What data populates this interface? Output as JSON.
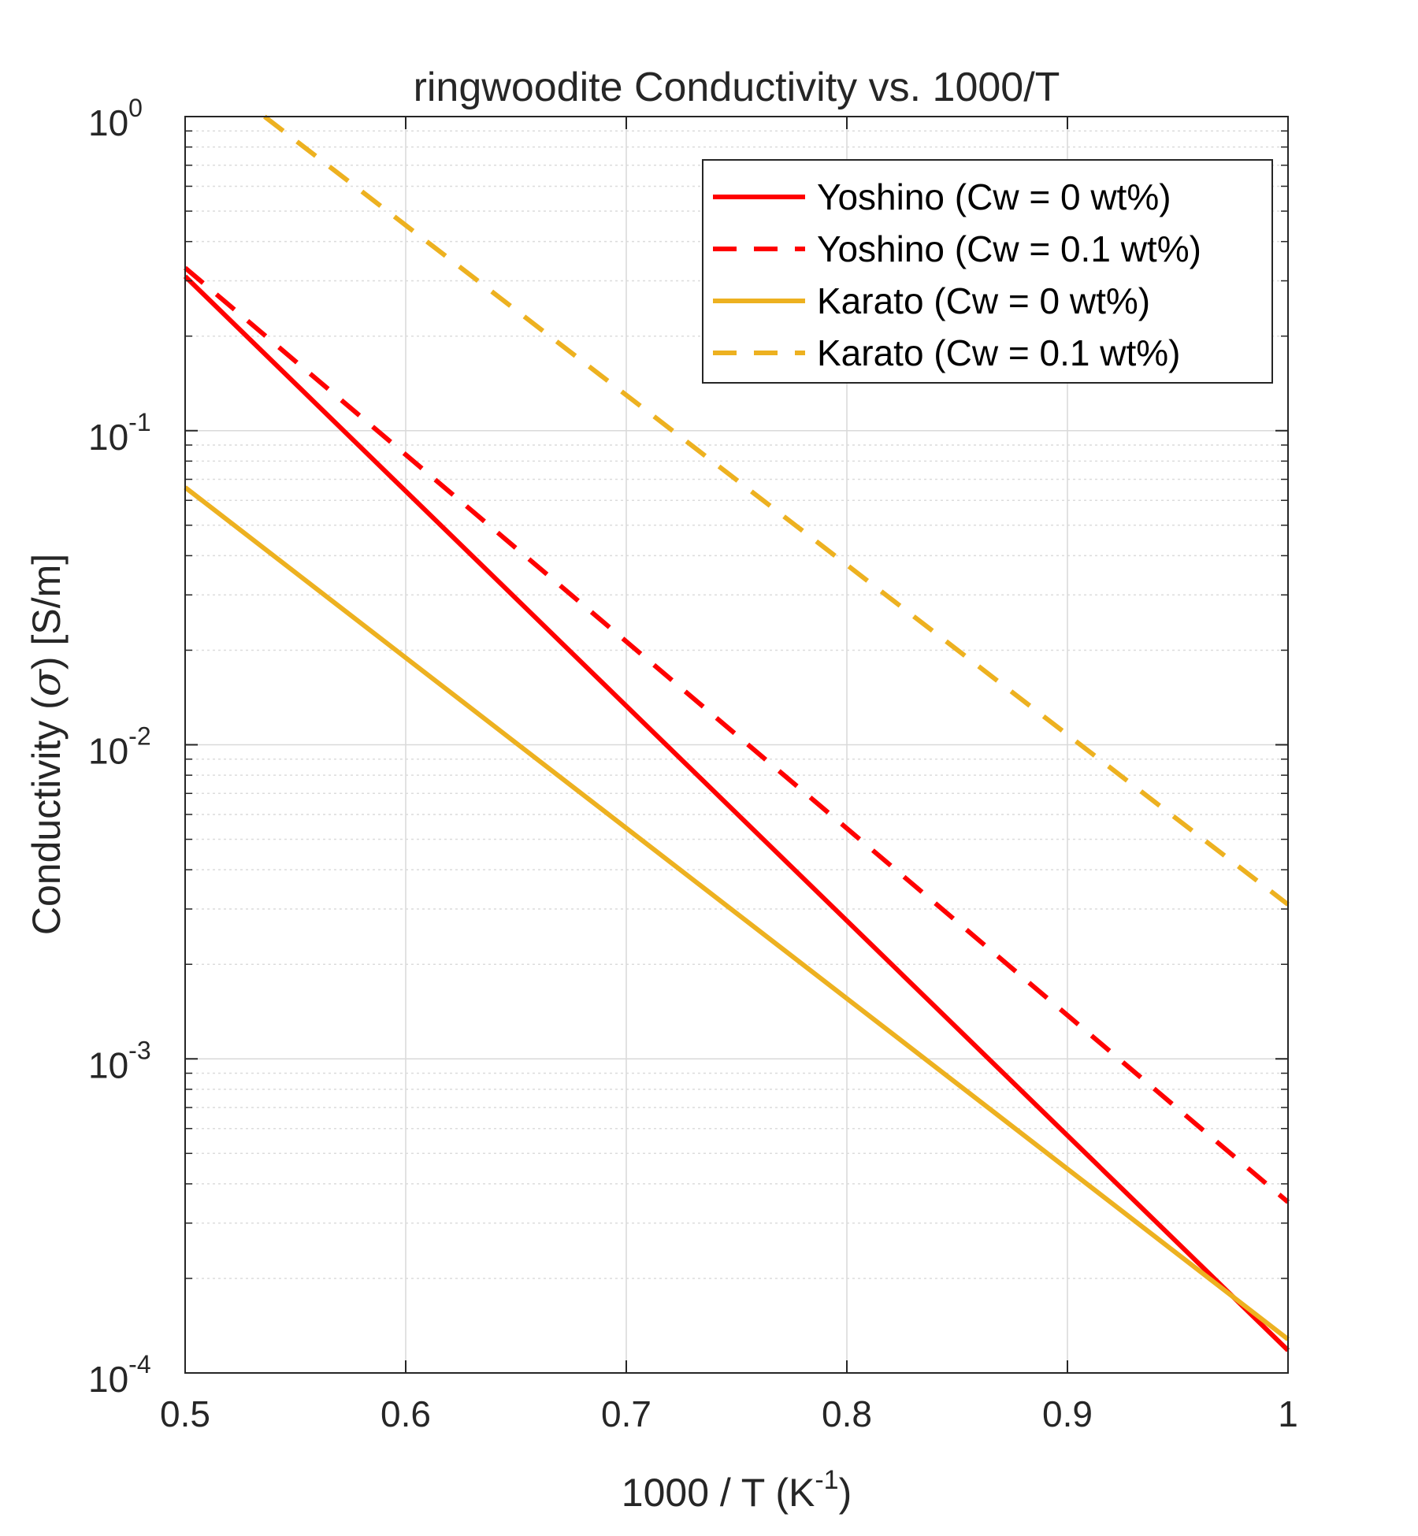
{
  "chart_data": {
    "type": "line",
    "title": "ringwoodite Conductivity vs. 1000/T",
    "xlabel": {
      "base": "1000 / T (K",
      "sup": "-1",
      "tail": ")"
    },
    "ylabel": {
      "pre": "Conductivity (",
      "sym": "σ",
      "post": ") [S/m]"
    },
    "xlim": [
      0.5,
      1.0
    ],
    "ylim": [
      0.0001,
      1
    ],
    "y_scale": "log",
    "grid": true,
    "minor_grid": true,
    "legend_position": "top-right",
    "x_ticks": [
      {
        "value": 0.5,
        "label": "0.5"
      },
      {
        "value": 0.6,
        "label": "0.6"
      },
      {
        "value": 0.7,
        "label": "0.7"
      },
      {
        "value": 0.8,
        "label": "0.8"
      },
      {
        "value": 0.9,
        "label": "0.9"
      },
      {
        "value": 1.0,
        "label": "1"
      }
    ],
    "y_ticks": [
      {
        "value": 1,
        "base": "10",
        "exp": "0"
      },
      {
        "value": 0.1,
        "base": "10",
        "exp": "-1"
      },
      {
        "value": 0.01,
        "base": "10",
        "exp": "-2"
      },
      {
        "value": 0.001,
        "base": "10",
        "exp": "-3"
      },
      {
        "value": 0.0001,
        "base": "10",
        "exp": "-4"
      }
    ],
    "series": [
      {
        "name": "Yoshino (Cw = 0 wt%)",
        "color": "#ff0000",
        "dash": "solid",
        "x": [
          0.5,
          1.0
        ],
        "y": [
          0.31,
          0.000118
        ]
      },
      {
        "name": "Yoshino (Cw = 0.1 wt%)",
        "color": "#ff0000",
        "dash": "dashed",
        "x": [
          0.5,
          1.0
        ],
        "y": [
          0.33,
          0.00035
        ]
      },
      {
        "name": "Karato (Cw = 0 wt%)",
        "color": "#edb120",
        "dash": "solid",
        "x": [
          0.5,
          1.0
        ],
        "y": [
          0.066,
          0.000128
        ]
      },
      {
        "name": "Karato (Cw = 0.1 wt%)",
        "color": "#edb120",
        "dash": "dashed",
        "x": [
          0.536,
          1.0
        ],
        "y": [
          1.0,
          0.0031
        ]
      }
    ]
  }
}
